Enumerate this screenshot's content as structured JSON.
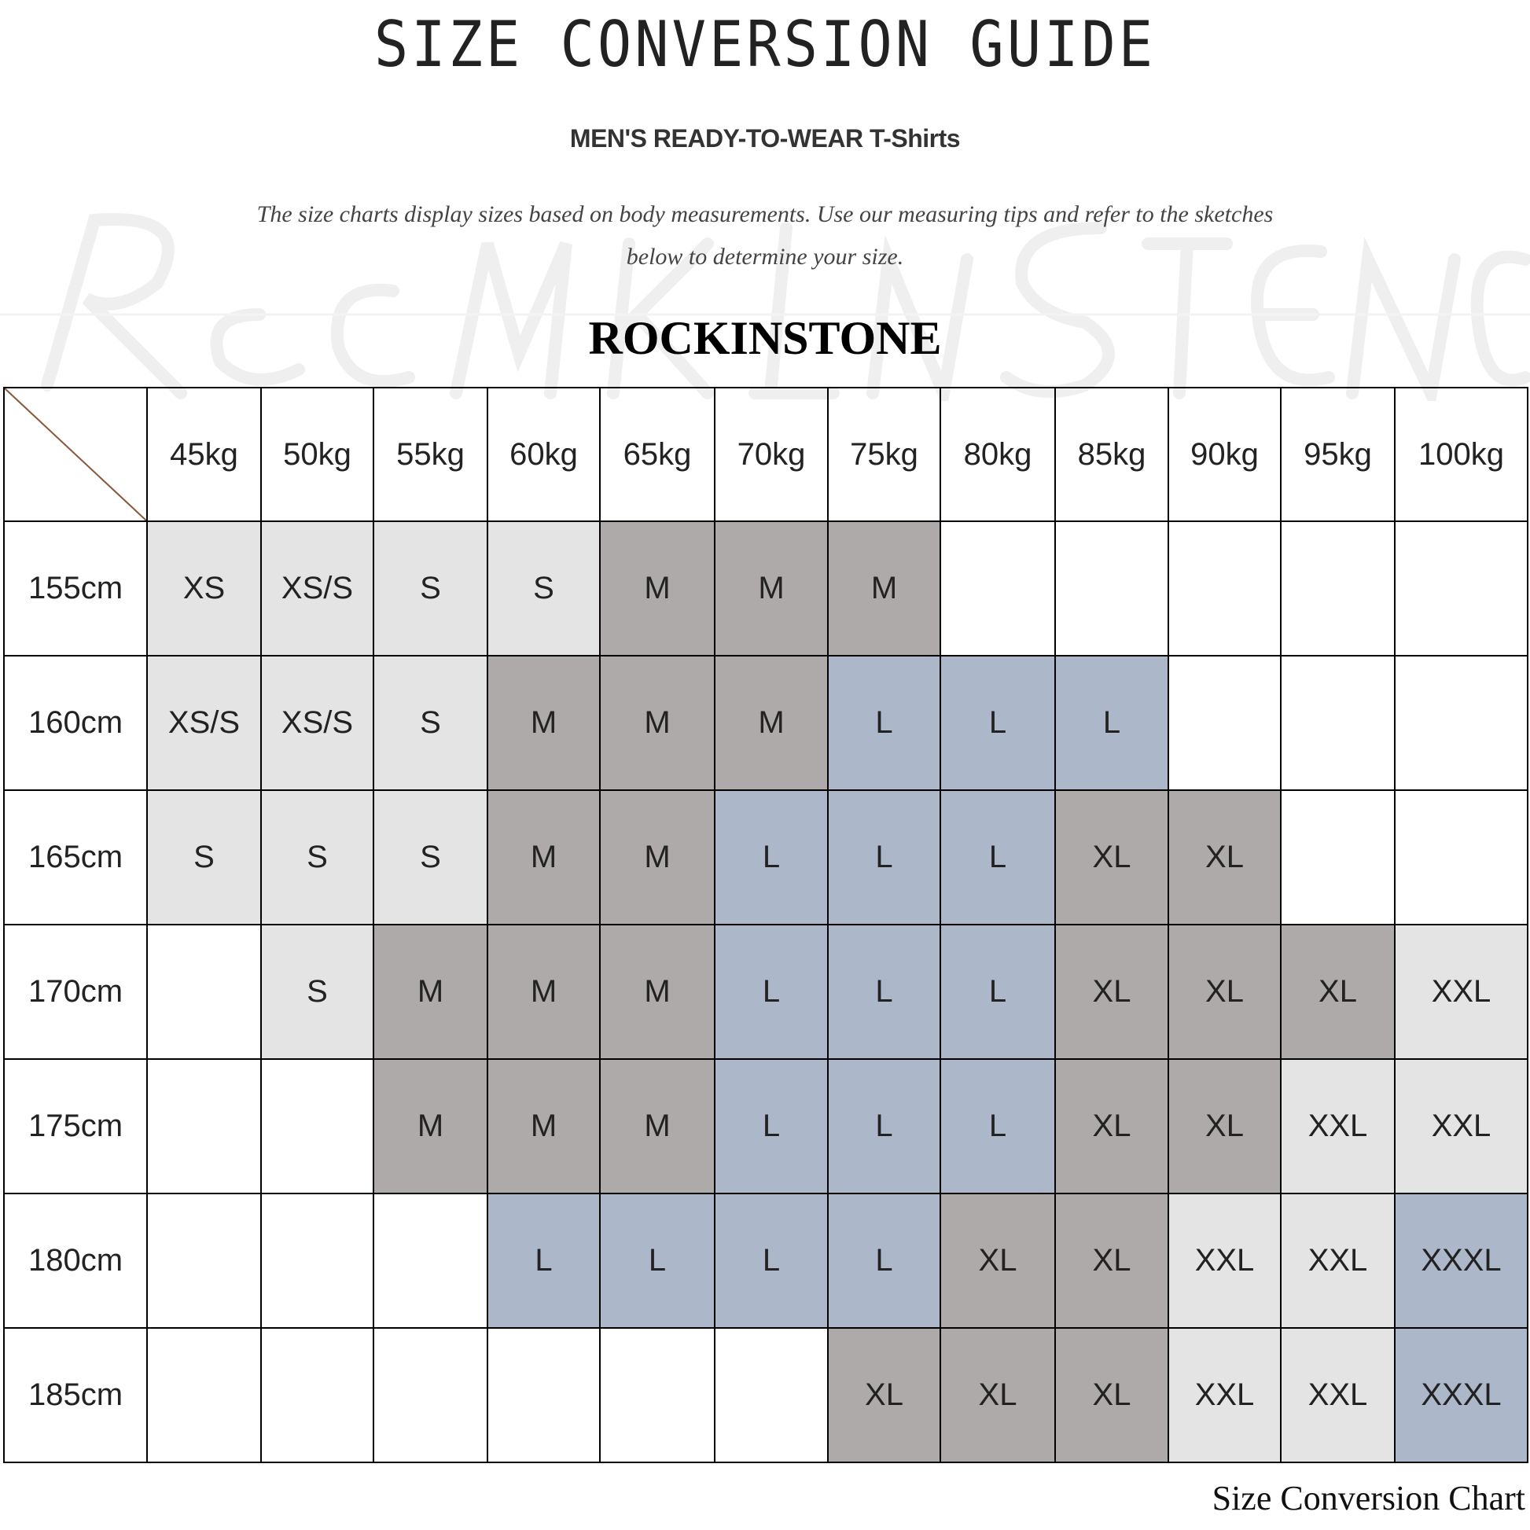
{
  "header": {
    "title": "SIZE CONVERSION GUIDE",
    "subtitle": "MEN'S READY-TO-WEAR T-Shirts",
    "description_line1": "The size charts display sizes based on body measurements. Use our measuring tips and refer to the sketches",
    "description_line2": "below to determine your size.",
    "brand": "ROCKINSTONE",
    "watermark": "Rockinstone"
  },
  "colors": {
    "XS": "#e4e4e4",
    "XS/S": "#e4e4e4",
    "S": "#e4e4e4",
    "M": "#aeaaa9",
    "L": "#acb8ca",
    "XL": "#aeaaa9",
    "XXL": "#e4e4e4",
    "XXXL": "#acb8ca",
    "empty": "#ffffff"
  },
  "table": {
    "weights": [
      "45kg",
      "50kg",
      "55kg",
      "60kg",
      "65kg",
      "70kg",
      "75kg",
      "80kg",
      "85kg",
      "90kg",
      "95kg",
      "100kg"
    ],
    "rows": [
      {
        "height": "155cm",
        "sizes": [
          "XS",
          "XS/S",
          "S",
          "S",
          "M",
          "M",
          "M",
          "",
          "",
          "",
          "",
          ""
        ]
      },
      {
        "height": "160cm",
        "sizes": [
          "XS/S",
          "XS/S",
          "S",
          "M",
          "M",
          "M",
          "L",
          "L",
          "L",
          "",
          "",
          ""
        ]
      },
      {
        "height": "165cm",
        "sizes": [
          "S",
          "S",
          "S",
          "M",
          "M",
          "L",
          "L",
          "L",
          "XL",
          "XL",
          "",
          ""
        ]
      },
      {
        "height": "170cm",
        "sizes": [
          "",
          "S",
          "M",
          "M",
          "M",
          "L",
          "L",
          "L",
          "XL",
          "XL",
          "XL",
          "XXL"
        ]
      },
      {
        "height": "175cm",
        "sizes": [
          "",
          "",
          "M",
          "M",
          "M",
          "L",
          "L",
          "L",
          "XL",
          "XL",
          "XXL",
          "XXL"
        ]
      },
      {
        "height": "180cm",
        "sizes": [
          "",
          "",
          "",
          "L",
          "L",
          "L",
          "L",
          "XL",
          "XL",
          "XXL",
          "XXL",
          "XXXL"
        ]
      },
      {
        "height": "185cm",
        "sizes": [
          "",
          "",
          "",
          "",
          "",
          "",
          "XL",
          "XL",
          "XL",
          "XXL",
          "XXL",
          "XXXL"
        ]
      }
    ]
  },
  "footer": {
    "caption": "Size Conversion Chart"
  }
}
